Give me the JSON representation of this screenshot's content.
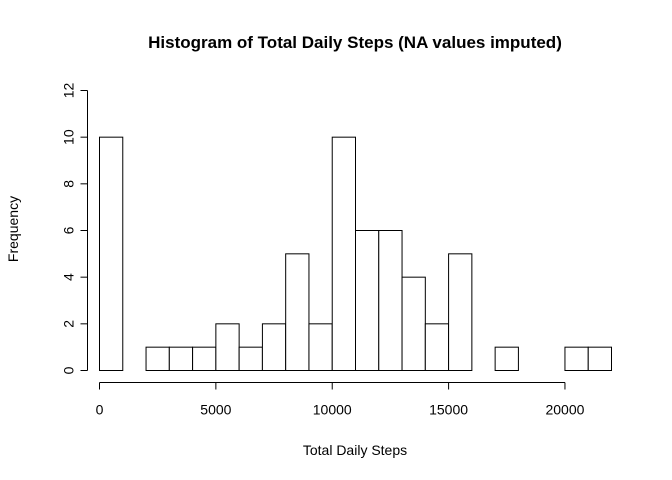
{
  "chart_data": {
    "type": "bar",
    "title": "Histogram of Total Daily Steps (NA values imputed)",
    "xlabel": "Total Daily Steps",
    "ylabel": "Frequency",
    "bin_width": 1000,
    "bins_start": [
      0,
      1000,
      2000,
      3000,
      4000,
      5000,
      6000,
      7000,
      8000,
      9000,
      10000,
      11000,
      12000,
      13000,
      14000,
      15000,
      16000,
      17000,
      18000,
      19000,
      20000,
      21000
    ],
    "values": [
      10,
      0,
      1,
      1,
      1,
      2,
      1,
      2,
      5,
      2,
      10,
      6,
      6,
      4,
      2,
      5,
      0,
      1,
      0,
      0,
      1,
      1
    ],
    "xlim": [
      0,
      22000
    ],
    "ylim": [
      0,
      12
    ],
    "x_ticks": [
      0,
      5000,
      10000,
      15000,
      20000
    ],
    "y_ticks": [
      0,
      2,
      4,
      6,
      8,
      10,
      12
    ],
    "grid": false,
    "legend": "none"
  }
}
